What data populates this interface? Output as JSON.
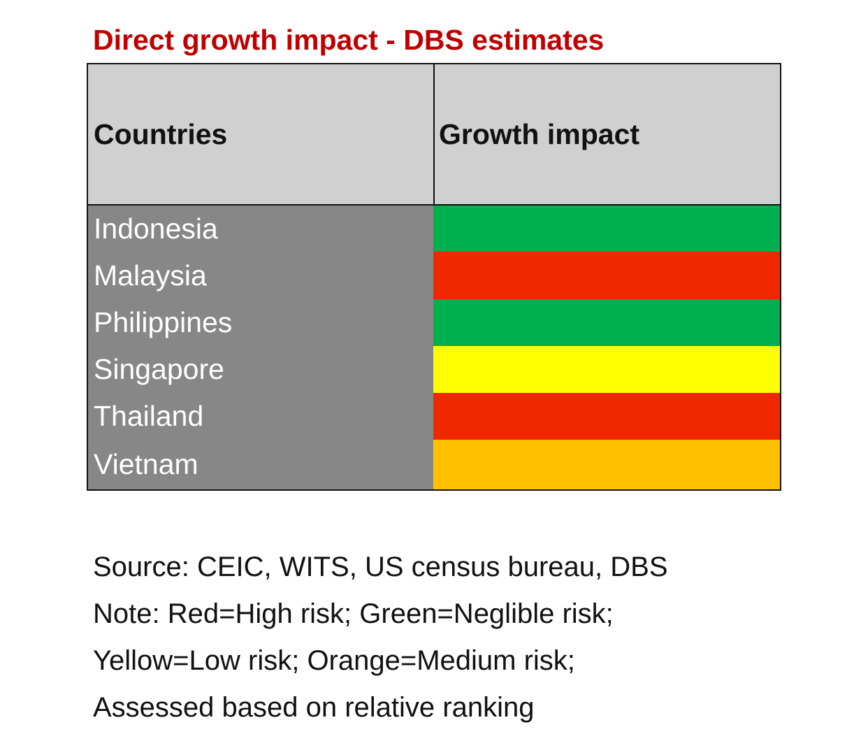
{
  "title": "Direct growth impact - DBS estimates",
  "colors": {
    "red": "#f02800",
    "green": "#00b050",
    "yellow": "#ffff00",
    "orange": "#ffc000",
    "title": "#c00000"
  },
  "chart_data": {
    "type": "table",
    "title": "Direct growth impact - DBS estimates",
    "columns": [
      "Countries",
      "Growth impact"
    ],
    "rows": [
      {
        "country": "Indonesia",
        "impact": "Green",
        "risk": "Neglible risk"
      },
      {
        "country": "Malaysia",
        "impact": "Red",
        "risk": "High risk"
      },
      {
        "country": "Philippines",
        "impact": "Green",
        "risk": "Neglible risk"
      },
      {
        "country": "Singapore",
        "impact": "Yellow",
        "risk": "Low risk"
      },
      {
        "country": "Thailand",
        "impact": "Red",
        "risk": "High risk"
      },
      {
        "country": "Vietnam",
        "impact": "Orange",
        "risk": "Medium risk"
      }
    ]
  },
  "notes": [
    "Source: CEIC, WITS, US census bureau, DBS",
    "Note: Red=High risk; Green=Neglible risk;",
    "Yellow=Low risk; Orange=Medium risk;",
    "Assessed based on relative ranking"
  ]
}
